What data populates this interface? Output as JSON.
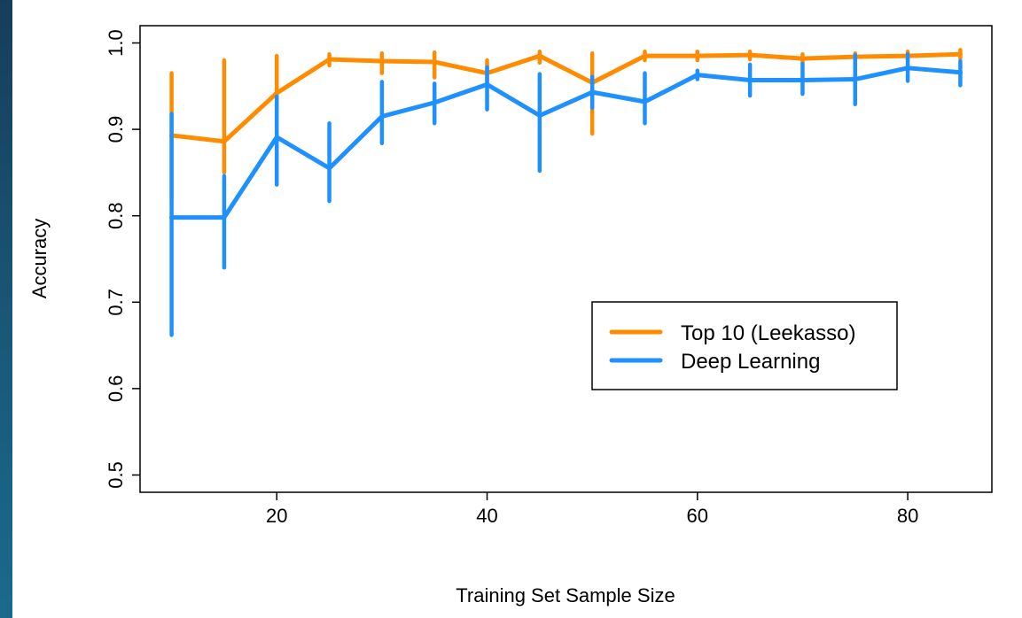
{
  "chart_data": {
    "type": "line",
    "xlabel": "Training Set Sample Size",
    "ylabel": "Accuracy",
    "xlim": [
      7,
      88
    ],
    "ylim": [
      0.48,
      1.02
    ],
    "xticks": [
      20,
      40,
      60,
      80
    ],
    "yticks": [
      0.5,
      0.6,
      0.7,
      0.8,
      0.9,
      1.0
    ],
    "ytick_labels": [
      "0.5",
      "0.6",
      "0.7",
      "0.8",
      "0.9",
      "1.0"
    ],
    "grid": false,
    "legend_position": "bottom-right",
    "x": [
      10,
      15,
      20,
      25,
      30,
      35,
      40,
      45,
      50,
      55,
      60,
      65,
      70,
      75,
      80,
      85
    ],
    "series": [
      {
        "name": "Top 10 (Leekasso)",
        "color": "#ff8c00",
        "values": [
          0.893,
          0.886,
          0.942,
          0.981,
          0.979,
          0.978,
          0.965,
          0.985,
          0.954,
          0.985,
          0.985,
          0.986,
          0.982,
          0.984,
          0.985,
          0.987
        ],
        "lower": [
          0.82,
          0.85,
          0.92,
          0.974,
          0.965,
          0.96,
          0.95,
          0.977,
          0.895,
          0.98,
          0.98,
          0.981,
          0.977,
          0.979,
          0.98,
          0.982
        ],
        "upper": [
          0.965,
          0.98,
          0.985,
          0.987,
          0.988,
          0.989,
          0.98,
          0.99,
          0.988,
          0.99,
          0.99,
          0.99,
          0.987,
          0.988,
          0.99,
          0.992
        ]
      },
      {
        "name": "Deep Learning",
        "color": "#1e90ff",
        "values": [
          0.798,
          0.798,
          0.891,
          0.855,
          0.915,
          0.931,
          0.952,
          0.916,
          0.943,
          0.932,
          0.963,
          0.957,
          0.957,
          0.958,
          0.971,
          0.966
        ],
        "lower": [
          0.662,
          0.74,
          0.836,
          0.817,
          0.884,
          0.907,
          0.923,
          0.852,
          0.925,
          0.907,
          0.958,
          0.939,
          0.941,
          0.929,
          0.956,
          0.951
        ],
        "upper": [
          0.918,
          0.846,
          0.938,
          0.907,
          0.955,
          0.953,
          0.972,
          0.964,
          0.961,
          0.965,
          0.968,
          0.975,
          0.976,
          0.986,
          0.987,
          0.979
        ]
      }
    ]
  }
}
